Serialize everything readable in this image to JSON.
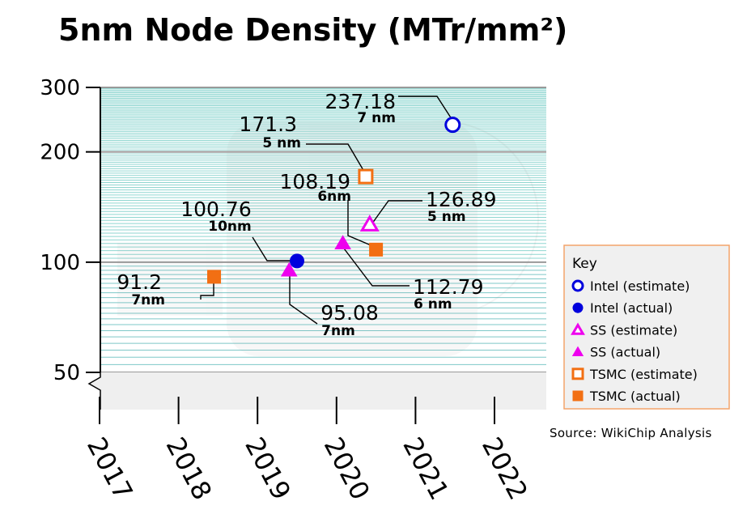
{
  "chart_data": {
    "type": "scatter",
    "title": "5nm Node Density (MTr/mm²)",
    "yscale": "log",
    "ylim": [
      50,
      300
    ],
    "yticks": [
      50,
      100,
      200,
      300
    ],
    "ytick_labels": [
      "50",
      "100",
      "200",
      "300"
    ],
    "xlim": [
      2017,
      2022.6
    ],
    "xticks": [
      2017,
      2018,
      2019,
      2020,
      2021,
      2022
    ],
    "xtick_labels": [
      "2017",
      "2018",
      "2019",
      "2020",
      "2021",
      "2022"
    ],
    "legend": {
      "title": "Key",
      "placement": "right",
      "entries": [
        {
          "label": "Intel (estimate)",
          "color": "#0000dd",
          "marker": "circle",
          "filled": false
        },
        {
          "label": "Intel (actual)",
          "color": "#0000dd",
          "marker": "circle",
          "filled": true
        },
        {
          "label": "SS (estimate)",
          "color": "#ee00ee",
          "marker": "triangle",
          "filled": false
        },
        {
          "label": "SS (actual)",
          "color": "#ee00ee",
          "marker": "triangle",
          "filled": true
        },
        {
          "label": "TSMC (estimate)",
          "color": "#f26f13",
          "marker": "square",
          "filled": false
        },
        {
          "label": "TSMC (actual)",
          "color": "#f26f13",
          "marker": "square",
          "filled": true
        }
      ]
    },
    "points": [
      {
        "series": "TSMC (actual)",
        "x": 2018.45,
        "y": 91.2,
        "label": "91.2",
        "node": "7nm"
      },
      {
        "series": "SS (actual)",
        "x": 2019.4,
        "y": 95.08,
        "label": "95.08",
        "node": "7nm"
      },
      {
        "series": "Intel (actual)",
        "x": 2019.5,
        "y": 100.76,
        "label": "100.76",
        "node": "10nm"
      },
      {
        "series": "SS (actual)",
        "x": 2020.08,
        "y": 112.79,
        "label": "112.79",
        "node": "6 nm"
      },
      {
        "series": "TSMC (actual)",
        "x": 2020.5,
        "y": 108.19,
        "label": "108.19",
        "node": "6nm"
      },
      {
        "series": "SS (estimate)",
        "x": 2020.42,
        "y": 126.89,
        "label": "126.89",
        "node": "5 nm"
      },
      {
        "series": "TSMC (estimate)",
        "x": 2020.37,
        "y": 171.3,
        "label": "171.3",
        "node": "5 nm"
      },
      {
        "series": "Intel (estimate)",
        "x": 2021.47,
        "y": 237.18,
        "label": "237.18",
        "node": "7 nm"
      }
    ],
    "source": "Source: WikiChip Analysis"
  }
}
